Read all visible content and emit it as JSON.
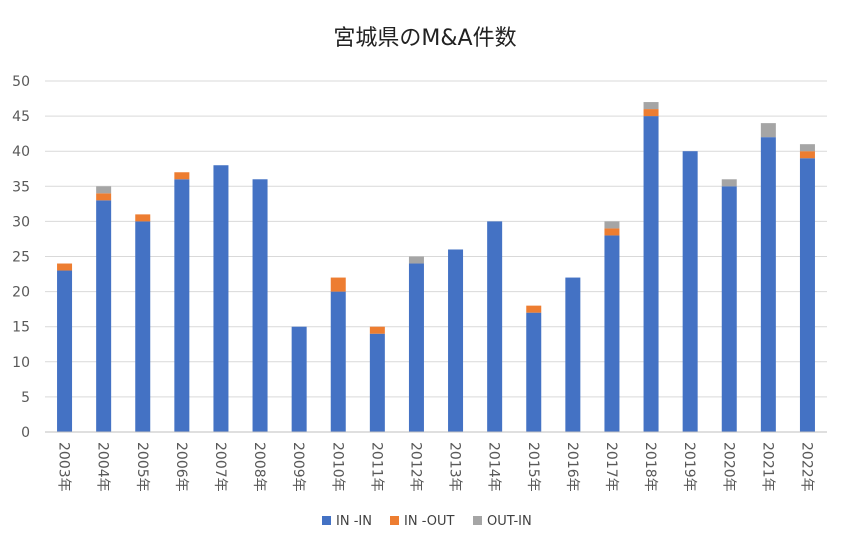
{
  "chart_data": {
    "type": "bar",
    "stacked": true,
    "title": "宮城県のM&A件数",
    "xlabel": "",
    "ylabel": "",
    "ylim": [
      0,
      50
    ],
    "yticks": [
      0,
      5,
      10,
      15,
      20,
      25,
      30,
      35,
      40,
      45,
      50
    ],
    "grid": true,
    "legend_position": "bottom",
    "categories": [
      "2003年",
      "2004年",
      "2005年",
      "2006年",
      "2007年",
      "2008年",
      "2009年",
      "2010年",
      "2011年",
      "2012年",
      "2013年",
      "2014年",
      "2015年",
      "2016年",
      "2017年",
      "2018年",
      "2019年",
      "2020年",
      "2021年",
      "2022年"
    ],
    "series": [
      {
        "name": "IN -IN",
        "color": "#4472C4",
        "values": [
          23,
          33,
          30,
          36,
          38,
          36,
          15,
          20,
          14,
          24,
          26,
          30,
          17,
          22,
          28,
          45,
          40,
          35,
          42,
          39
        ]
      },
      {
        "name": "IN -OUT",
        "color": "#ED7D31",
        "values": [
          1,
          1,
          1,
          1,
          0,
          0,
          0,
          2,
          1,
          0,
          0,
          0,
          1,
          0,
          1,
          1,
          0,
          0,
          0,
          1
        ]
      },
      {
        "name": "OUT-IN",
        "color": "#A5A5A5",
        "values": [
          0,
          1,
          0,
          0,
          0,
          0,
          0,
          0,
          0,
          1,
          0,
          0,
          0,
          0,
          1,
          1,
          0,
          1,
          2,
          1
        ]
      }
    ]
  }
}
